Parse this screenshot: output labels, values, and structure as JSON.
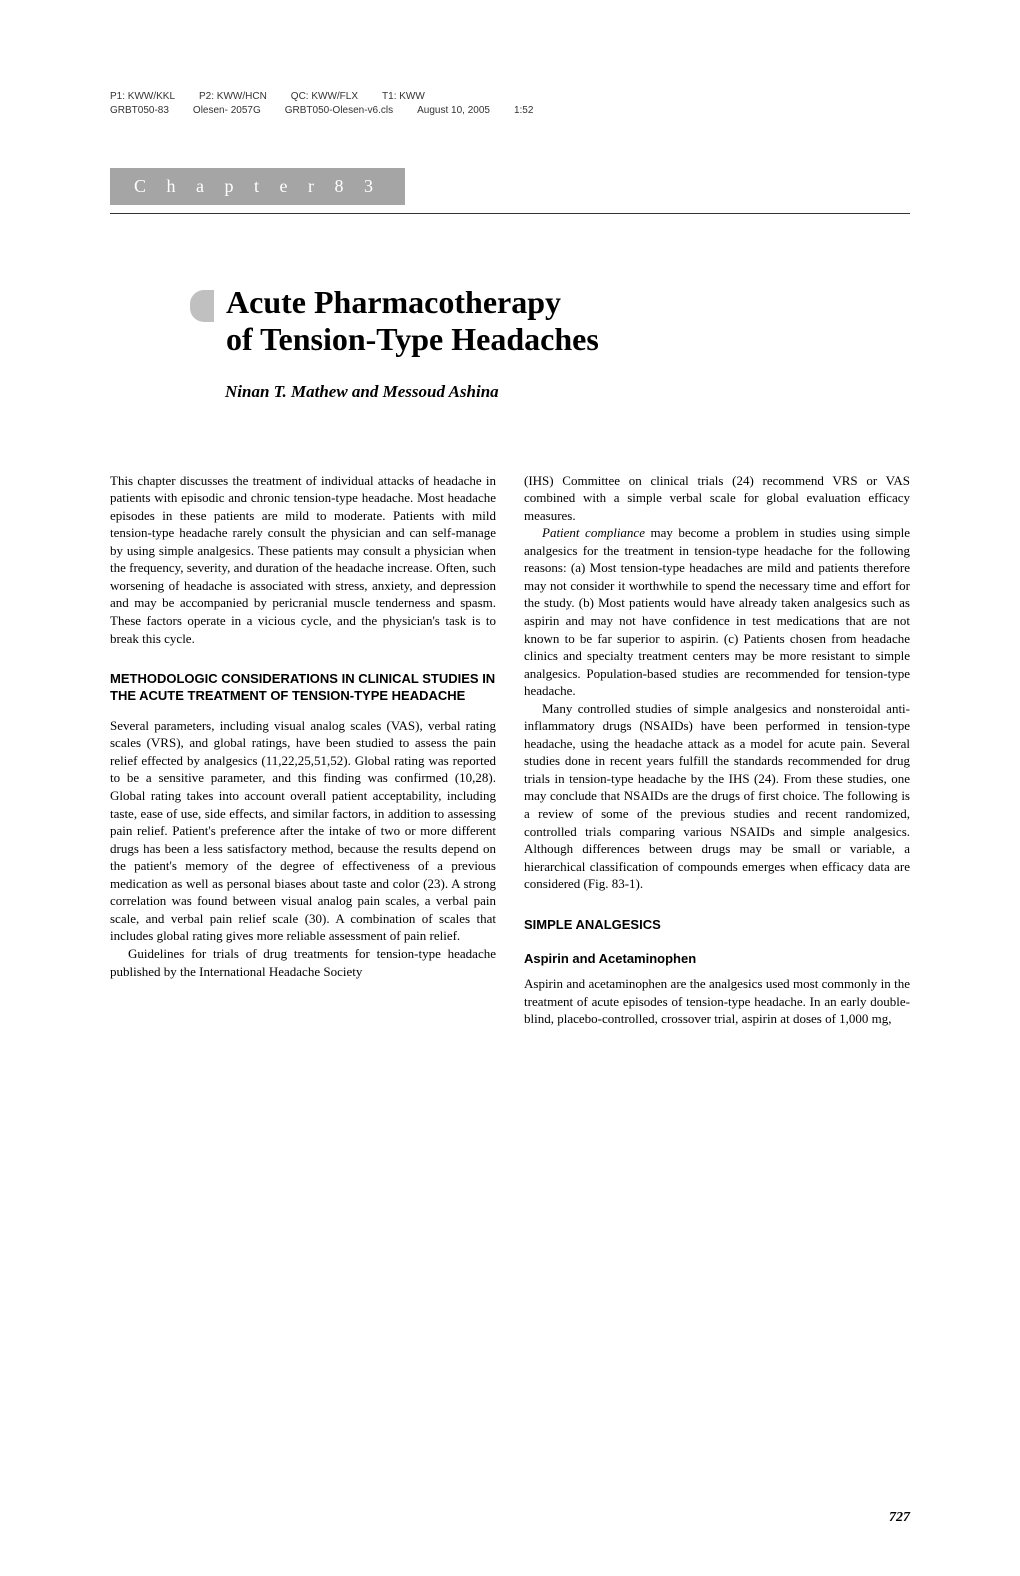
{
  "meta": {
    "line1_p1": "P1: KWW/KKL",
    "line1_p2": "P2: KWW/HCN",
    "line1_qc": "QC: KWW/FLX",
    "line1_t1": "T1: KWW",
    "line2_code": "GRBT050-83",
    "line2_a": "Olesen- 2057G",
    "line2_b": "GRBT050-Olesen-v6.cls",
    "line2_date": "August 10, 2005",
    "line2_time": "1:52"
  },
  "chapter": {
    "banner": "C h a p t e r   8 3",
    "title_line1": "Acute Pharmacotherapy",
    "title_line2": "of Tension-Type Headaches",
    "authors": "Ninan T. Mathew and Messoud Ashina"
  },
  "left": {
    "intro": "This chapter discusses the treatment of individual attacks of headache in patients with episodic and chronic tension-type headache. Most headache episodes in these patients are mild to moderate. Patients with mild tension-type headache rarely consult the physician and can self-manage by using simple analgesics. These patients may consult a physician when the frequency, severity, and duration of the headache increase. Often, such worsening of headache is associated with stress, anxiety, and depression and may be accompanied by pericranial muscle tenderness and spasm. These factors operate in a vicious cycle, and the physician's task is to break this cycle.",
    "heading1": "METHODOLOGIC CONSIDERATIONS IN CLINICAL STUDIES IN THE ACUTE TREATMENT OF TENSION-TYPE HEADACHE",
    "p1": "Several parameters, including visual analog scales (VAS), verbal rating scales (VRS), and global ratings, have been studied to assess the pain relief effected by analgesics (11,22,25,51,52). Global rating was reported to be a sensitive parameter, and this finding was confirmed (10,28). Global rating takes into account overall patient acceptability, including taste, ease of use, side effects, and similar factors, in addition to assessing pain relief. Patient's preference after the intake of two or more different drugs has been a less satisfactory method, because the results depend on the patient's memory of the degree of effectiveness of a previous medication as well as personal biases about taste and color (23). A strong correlation was found between visual analog pain scales, a verbal pain scale, and verbal pain relief scale (30). A combination of scales that includes global rating gives more reliable assessment of pain relief.",
    "p2": "Guidelines for trials of drug treatments for tension-type headache published by the International Headache Society"
  },
  "right": {
    "p1": "(IHS) Committee on clinical trials (24) recommend VRS or VAS combined with a simple verbal scale for global evaluation efficacy measures.",
    "p2a": "Patient compliance",
    "p2b": " may become a problem in studies using simple analgesics for the treatment in tension-type headache for the following reasons: (a) Most tension-type headaches are mild and patients therefore may not consider it worthwhile to spend the necessary time and effort for the study. (b) Most patients would have already taken analgesics such as aspirin and may not have confidence in test medications that are not known to be far superior to aspirin. (c) Patients chosen from headache clinics and specialty treatment centers may be more resistant to simple analgesics. Population-based studies are recommended for tension-type headache.",
    "p3": "Many controlled studies of simple analgesics and nonsteroidal anti-inflammatory drugs (NSAIDs) have been performed in tension-type headache, using the headache attack as a model for acute pain. Several studies done in recent years fulfill the standards recommended for drug trials in tension-type headache by the IHS (24). From these studies, one may conclude that NSAIDs are the drugs of first choice. The following is a review of some of the previous studies and recent randomized, controlled trials comparing various NSAIDs and simple analgesics. Although differences between drugs may be small or variable, a hierarchical classification of compounds emerges when efficacy data are considered (Fig. 83-1).",
    "heading2": "SIMPLE ANALGESICS",
    "subheading": "Aspirin and Acetaminophen",
    "p4": "Aspirin and acetaminophen are the analgesics used most commonly in the treatment of acute episodes of tension-type headache. In an early double-blind, placebo-controlled, crossover trial, aspirin at doses of 1,000 mg,"
  },
  "page_num": "727"
}
